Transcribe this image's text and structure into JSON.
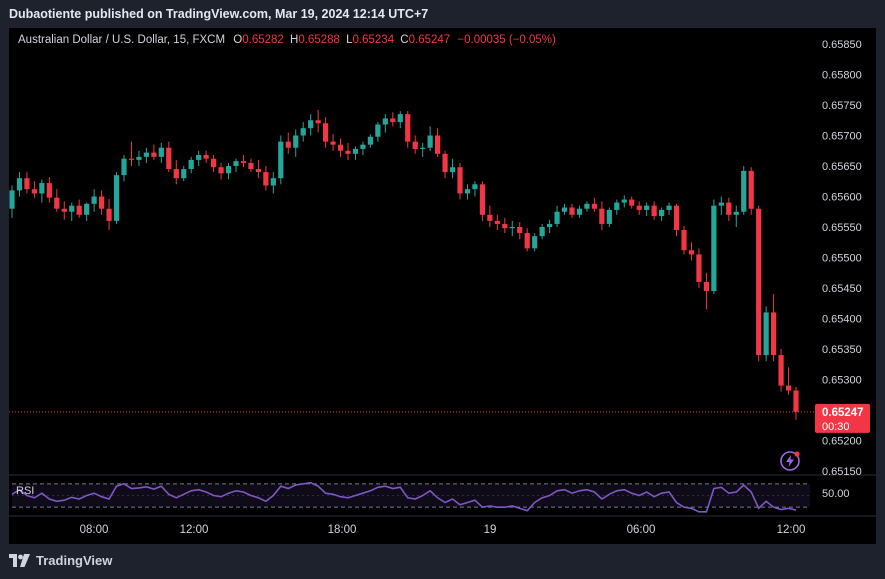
{
  "header": {
    "published": "Dubaotiente published on TradingView.com, Mar 19, 2024 12:14 UTC+7"
  },
  "legend": {
    "symbol": "Australian Dollar / U.S. Dollar, 15, FXCM",
    "o_label": "O",
    "o_value": "0.65282",
    "h_label": "H",
    "h_value": "0.65288",
    "l_label": "L",
    "l_value": "0.65234",
    "c_label": "C",
    "c_value": "0.65247",
    "change": "−0.00035 (−0.05%)"
  },
  "footer": {
    "brand": "TradingView"
  },
  "colors": {
    "up": "#26a69a",
    "down": "#f23645",
    "rsi": "#7e57c2",
    "background": "#000000",
    "frame": "#1e222d"
  },
  "chart_data": {
    "type": "candlestick",
    "price_axis": {
      "ticks": [
        "0.65850",
        "0.65800",
        "0.65750",
        "0.65700",
        "0.65650",
        "0.65600",
        "0.65550",
        "0.65500",
        "0.65450",
        "0.65400",
        "0.65350",
        "0.65300",
        "0.65200",
        "0.65150"
      ],
      "ylim": [
        0.6515,
        0.6587
      ]
    },
    "last_price": {
      "value": "0.65247",
      "countdown": "00:30"
    },
    "time_axis": {
      "ticks": [
        "08:00",
        "12:00",
        "18:00",
        "19",
        "06:00",
        "12:00"
      ]
    },
    "rsi": {
      "label": "RSI",
      "level": "50.00",
      "ylim": [
        20,
        80
      ],
      "upper": 70,
      "lower": 30
    },
    "candles": [
      [
        0.6558,
        0.65618,
        0.65565,
        0.6561
      ],
      [
        0.6561,
        0.6564,
        0.656,
        0.6563
      ],
      [
        0.6563,
        0.6564,
        0.65605,
        0.65612
      ],
      [
        0.65612,
        0.65625,
        0.65598,
        0.65605
      ],
      [
        0.65605,
        0.65628,
        0.6559,
        0.65622
      ],
      [
        0.65622,
        0.65632,
        0.6559,
        0.65598
      ],
      [
        0.65598,
        0.65612,
        0.65575,
        0.6558
      ],
      [
        0.6558,
        0.65592,
        0.65562,
        0.65575
      ],
      [
        0.65575,
        0.6559,
        0.6556,
        0.65585
      ],
      [
        0.65585,
        0.65595,
        0.65565,
        0.6557
      ],
      [
        0.6557,
        0.6559,
        0.6556,
        0.65588
      ],
      [
        0.65588,
        0.65612,
        0.65575,
        0.656
      ],
      [
        0.656,
        0.6561,
        0.6557,
        0.6558
      ],
      [
        0.6558,
        0.65596,
        0.65545,
        0.6556
      ],
      [
        0.6556,
        0.6564,
        0.65555,
        0.65635
      ],
      [
        0.65635,
        0.65668,
        0.65625,
        0.65662
      ],
      [
        0.65662,
        0.6569,
        0.6565,
        0.6566
      ],
      [
        0.6566,
        0.65675,
        0.6565,
        0.65665
      ],
      [
        0.65665,
        0.6568,
        0.65655,
        0.65672
      ],
      [
        0.65672,
        0.65685,
        0.6566,
        0.65665
      ],
      [
        0.65665,
        0.65688,
        0.65655,
        0.6568
      ],
      [
        0.6568,
        0.6569,
        0.6564,
        0.65645
      ],
      [
        0.65645,
        0.6566,
        0.6562,
        0.6563
      ],
      [
        0.6563,
        0.6565,
        0.65625,
        0.65645
      ],
      [
        0.65645,
        0.65665,
        0.65638,
        0.6566
      ],
      [
        0.6566,
        0.65675,
        0.6565,
        0.65668
      ],
      [
        0.65668,
        0.65675,
        0.65655,
        0.65662
      ],
      [
        0.65662,
        0.65668,
        0.6564,
        0.65648
      ],
      [
        0.65648,
        0.65655,
        0.65628,
        0.65638
      ],
      [
        0.65638,
        0.65655,
        0.65628,
        0.6565
      ],
      [
        0.6565,
        0.65662,
        0.6564,
        0.65658
      ],
      [
        0.65658,
        0.65668,
        0.65648,
        0.65655
      ],
      [
        0.65655,
        0.65662,
        0.6564,
        0.65645
      ],
      [
        0.65645,
        0.6566,
        0.6563,
        0.6564
      ],
      [
        0.6564,
        0.6565,
        0.6561,
        0.65618
      ],
      [
        0.65618,
        0.6564,
        0.65605,
        0.6563
      ],
      [
        0.6563,
        0.657,
        0.6562,
        0.6569
      ],
      [
        0.6569,
        0.65705,
        0.6567,
        0.6568
      ],
      [
        0.6568,
        0.6571,
        0.65665,
        0.657
      ],
      [
        0.657,
        0.65722,
        0.6569,
        0.65712
      ],
      [
        0.65712,
        0.65735,
        0.657,
        0.65725
      ],
      [
        0.65725,
        0.65742,
        0.65705,
        0.6572
      ],
      [
        0.6572,
        0.6573,
        0.6568,
        0.6569
      ],
      [
        0.6569,
        0.65702,
        0.65675,
        0.65685
      ],
      [
        0.65685,
        0.65695,
        0.65665,
        0.65675
      ],
      [
        0.65675,
        0.65688,
        0.6566,
        0.6567
      ],
      [
        0.6567,
        0.65682,
        0.6566,
        0.65678
      ],
      [
        0.65678,
        0.6569,
        0.65668,
        0.65685
      ],
      [
        0.65685,
        0.65702,
        0.6568,
        0.65698
      ],
      [
        0.65698,
        0.65722,
        0.6569,
        0.65718
      ],
      [
        0.65718,
        0.65735,
        0.65705,
        0.65728
      ],
      [
        0.65728,
        0.65738,
        0.65715,
        0.65722
      ],
      [
        0.65722,
        0.6574,
        0.65712,
        0.65735
      ],
      [
        0.65735,
        0.6574,
        0.6568,
        0.6569
      ],
      [
        0.6569,
        0.657,
        0.6567,
        0.65678
      ],
      [
        0.65678,
        0.65688,
        0.65665,
        0.6568
      ],
      [
        0.6568,
        0.65715,
        0.65675,
        0.657
      ],
      [
        0.657,
        0.65712,
        0.65665,
        0.6567
      ],
      [
        0.6567,
        0.65675,
        0.6563,
        0.6564
      ],
      [
        0.6564,
        0.65662,
        0.6563,
        0.65648
      ],
      [
        0.65648,
        0.65655,
        0.65595,
        0.65605
      ],
      [
        0.65605,
        0.6562,
        0.65595,
        0.65612
      ],
      [
        0.65612,
        0.65625,
        0.656,
        0.6562
      ],
      [
        0.6562,
        0.65625,
        0.6556,
        0.6557
      ],
      [
        0.6557,
        0.65585,
        0.6555,
        0.6556
      ],
      [
        0.6556,
        0.6557,
        0.65545,
        0.65555
      ],
      [
        0.65555,
        0.65565,
        0.6554,
        0.65548
      ],
      [
        0.65548,
        0.6556,
        0.65535,
        0.6555
      ],
      [
        0.6555,
        0.65558,
        0.6553,
        0.6554
      ],
      [
        0.6554,
        0.65548,
        0.6551,
        0.65515
      ],
      [
        0.65515,
        0.6554,
        0.6551,
        0.65535
      ],
      [
        0.65535,
        0.65555,
        0.6553,
        0.6555
      ],
      [
        0.6555,
        0.65562,
        0.6554,
        0.65555
      ],
      [
        0.65555,
        0.65585,
        0.6555,
        0.65575
      ],
      [
        0.65575,
        0.65588,
        0.6557,
        0.65582
      ],
      [
        0.65582,
        0.65588,
        0.65565,
        0.6557
      ],
      [
        0.6557,
        0.65585,
        0.65565,
        0.6558
      ],
      [
        0.6558,
        0.65592,
        0.65575,
        0.65588
      ],
      [
        0.65588,
        0.65598,
        0.65575,
        0.6558
      ],
      [
        0.6558,
        0.65592,
        0.65545,
        0.65555
      ],
      [
        0.65555,
        0.65582,
        0.6555,
        0.65578
      ],
      [
        0.65578,
        0.65595,
        0.6557,
        0.6559
      ],
      [
        0.6559,
        0.65602,
        0.65582,
        0.65595
      ],
      [
        0.65595,
        0.656,
        0.6558,
        0.65585
      ],
      [
        0.65585,
        0.65592,
        0.6557,
        0.65578
      ],
      [
        0.65578,
        0.6559,
        0.65568,
        0.65585
      ],
      [
        0.65585,
        0.65592,
        0.65562,
        0.65568
      ],
      [
        0.65568,
        0.65582,
        0.6556,
        0.65578
      ],
      [
        0.65578,
        0.6559,
        0.6557,
        0.65585
      ],
      [
        0.65585,
        0.65588,
        0.65535,
        0.65545
      ],
      [
        0.65545,
        0.65552,
        0.65505,
        0.65512
      ],
      [
        0.65512,
        0.65525,
        0.65495,
        0.65505
      ],
      [
        0.65505,
        0.65515,
        0.6545,
        0.6546
      ],
      [
        0.6546,
        0.65475,
        0.65415,
        0.65445
      ],
      [
        0.65445,
        0.65595,
        0.6544,
        0.65585
      ],
      [
        0.65585,
        0.656,
        0.6557,
        0.6559
      ],
      [
        0.6559,
        0.65598,
        0.6556,
        0.6557
      ],
      [
        0.6557,
        0.65585,
        0.6555,
        0.65575
      ],
      [
        0.65575,
        0.6565,
        0.6557,
        0.65642
      ],
      [
        0.65642,
        0.65648,
        0.6557,
        0.6558
      ],
      [
        0.6558,
        0.65585,
        0.6533,
        0.6534
      ],
      [
        0.6534,
        0.6542,
        0.6533,
        0.6541
      ],
      [
        0.6541,
        0.6544,
        0.6533,
        0.6534
      ],
      [
        0.6534,
        0.6535,
        0.6528,
        0.6529
      ],
      [
        0.6529,
        0.6532,
        0.65275,
        0.65282
      ],
      [
        0.65282,
        0.65288,
        0.65234,
        0.65247
      ]
    ],
    "rsi_values": [
      52,
      60,
      50,
      46,
      54,
      44,
      40,
      42,
      47,
      44,
      50,
      54,
      48,
      44,
      66,
      70,
      62,
      63,
      65,
      61,
      66,
      52,
      46,
      52,
      58,
      60,
      56,
      50,
      48,
      54,
      58,
      56,
      50,
      46,
      40,
      50,
      66,
      62,
      68,
      70,
      72,
      66,
      54,
      52,
      48,
      46,
      50,
      54,
      58,
      64,
      66,
      62,
      64,
      46,
      44,
      50,
      58,
      46,
      38,
      44,
      34,
      38,
      42,
      30,
      32,
      30,
      30,
      32,
      28,
      24,
      38,
      46,
      50,
      58,
      60,
      54,
      58,
      60,
      56,
      44,
      52,
      58,
      60,
      54,
      50,
      56,
      48,
      54,
      56,
      38,
      30,
      28,
      22,
      22,
      62,
      64,
      54,
      56,
      68,
      56,
      28,
      40,
      30,
      26,
      28,
      25
    ]
  }
}
